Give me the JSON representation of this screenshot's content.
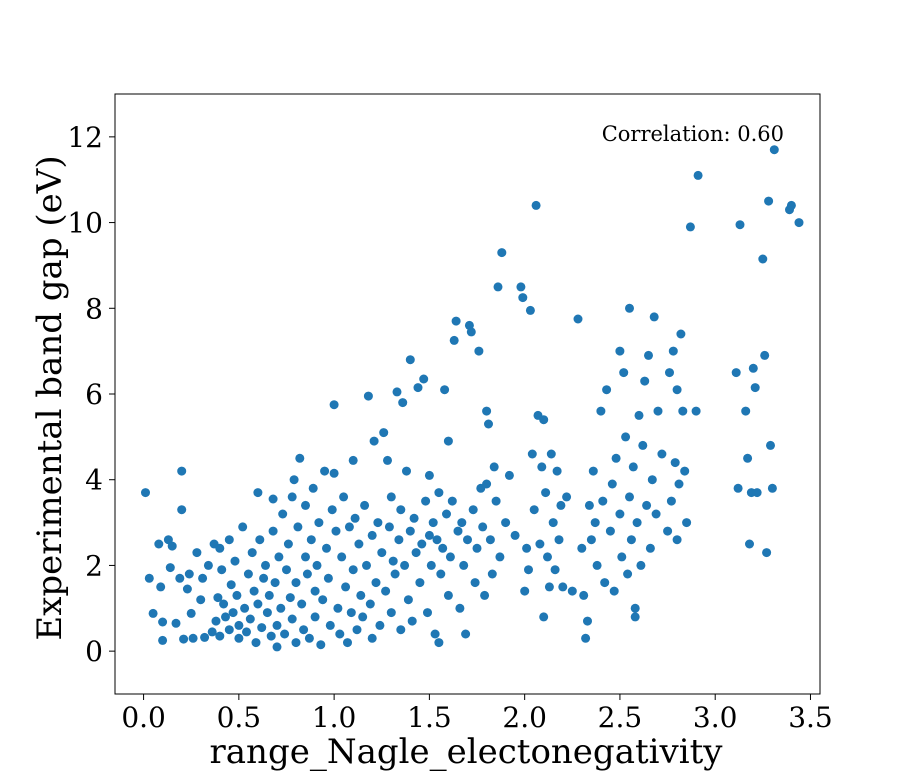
{
  "chart_data": {
    "type": "scatter",
    "title": "",
    "xlabel": "range_Nagle_electonegativity",
    "ylabel": "Experimental band gap (eV)",
    "xlim": [
      -0.15,
      3.55
    ],
    "ylim": [
      -1.0,
      13.0
    ],
    "xticks": [
      0.0,
      0.5,
      1.0,
      1.5,
      2.0,
      2.5,
      3.0,
      3.5
    ],
    "xtick_labels": [
      "0.0",
      "0.5",
      "1.0",
      "1.5",
      "2.0",
      "2.5",
      "3.0",
      "3.5"
    ],
    "yticks": [
      0,
      2,
      4,
      6,
      8,
      10,
      12
    ],
    "ytick_labels": [
      "0",
      "2",
      "4",
      "6",
      "8",
      "10",
      "12"
    ],
    "annotation": "Correlation: 0.60",
    "grid": false,
    "marker_color": "#1f77b4",
    "points": [
      [
        0.01,
        3.7
      ],
      [
        0.03,
        1.7
      ],
      [
        0.05,
        0.88
      ],
      [
        0.08,
        2.5
      ],
      [
        0.09,
        1.5
      ],
      [
        0.1,
        0.68
      ],
      [
        0.1,
        0.25
      ],
      [
        0.13,
        2.6
      ],
      [
        0.14,
        1.95
      ],
      [
        0.15,
        2.45
      ],
      [
        0.17,
        0.65
      ],
      [
        0.19,
        1.7
      ],
      [
        0.2,
        3.3
      ],
      [
        0.2,
        4.2
      ],
      [
        0.21,
        0.28
      ],
      [
        0.23,
        1.45
      ],
      [
        0.24,
        1.8
      ],
      [
        0.25,
        0.88
      ],
      [
        0.26,
        0.3
      ],
      [
        0.28,
        2.3
      ],
      [
        0.3,
        1.2
      ],
      [
        0.31,
        1.7
      ],
      [
        0.32,
        0.32
      ],
      [
        0.34,
        2.0
      ],
      [
        0.36,
        0.45
      ],
      [
        0.37,
        2.5
      ],
      [
        0.38,
        0.7
      ],
      [
        0.39,
        1.25
      ],
      [
        0.4,
        2.4
      ],
      [
        0.4,
        0.35
      ],
      [
        0.41,
        1.9
      ],
      [
        0.42,
        1.1
      ],
      [
        0.43,
        0.8
      ],
      [
        0.45,
        2.6
      ],
      [
        0.45,
        0.5
      ],
      [
        0.46,
        1.55
      ],
      [
        0.47,
        0.9
      ],
      [
        0.48,
        2.1
      ],
      [
        0.49,
        1.3
      ],
      [
        0.5,
        0.3
      ],
      [
        0.5,
        0.6
      ],
      [
        0.52,
        2.9
      ],
      [
        0.53,
        1.0
      ],
      [
        0.54,
        0.45
      ],
      [
        0.55,
        1.8
      ],
      [
        0.56,
        0.75
      ],
      [
        0.57,
        2.3
      ],
      [
        0.58,
        1.4
      ],
      [
        0.59,
        0.2
      ],
      [
        0.6,
        1.1
      ],
      [
        0.6,
        3.7
      ],
      [
        0.61,
        2.6
      ],
      [
        0.62,
        0.55
      ],
      [
        0.63,
        1.7
      ],
      [
        0.64,
        2.0
      ],
      [
        0.65,
        0.9
      ],
      [
        0.66,
        1.3
      ],
      [
        0.67,
        0.35
      ],
      [
        0.68,
        2.8
      ],
      [
        0.68,
        3.55
      ],
      [
        0.69,
        1.6
      ],
      [
        0.7,
        0.1
      ],
      [
        0.7,
        0.6
      ],
      [
        0.71,
        2.2
      ],
      [
        0.72,
        1.0
      ],
      [
        0.73,
        3.2
      ],
      [
        0.74,
        0.4
      ],
      [
        0.75,
        1.9
      ],
      [
        0.76,
        2.5
      ],
      [
        0.77,
        1.25
      ],
      [
        0.78,
        0.75
      ],
      [
        0.78,
        3.6
      ],
      [
        0.79,
        4.0
      ],
      [
        0.8,
        1.6
      ],
      [
        0.8,
        0.2
      ],
      [
        0.81,
        2.9
      ],
      [
        0.82,
        4.5
      ],
      [
        0.83,
        1.1
      ],
      [
        0.84,
        0.5
      ],
      [
        0.85,
        2.2
      ],
      [
        0.85,
        3.4
      ],
      [
        0.86,
        1.8
      ],
      [
        0.87,
        0.3
      ],
      [
        0.88,
        2.6
      ],
      [
        0.89,
        3.8
      ],
      [
        0.9,
        1.4
      ],
      [
        0.9,
        0.8
      ],
      [
        0.91,
        2.0
      ],
      [
        0.92,
        3.0
      ],
      [
        0.93,
        0.15
      ],
      [
        0.94,
        1.2
      ],
      [
        0.95,
        4.2
      ],
      [
        0.96,
        2.4
      ],
      [
        0.97,
        1.7
      ],
      [
        0.98,
        0.6
      ],
      [
        0.99,
        3.3
      ],
      [
        1.0,
        4.15
      ],
      [
        1.0,
        5.75
      ],
      [
        1.01,
        2.8
      ],
      [
        1.02,
        1.0
      ],
      [
        1.03,
        0.4
      ],
      [
        1.04,
        2.2
      ],
      [
        1.05,
        3.6
      ],
      [
        1.06,
        1.5
      ],
      [
        1.07,
        0.2
      ],
      [
        1.08,
        2.9
      ],
      [
        1.09,
        0.9
      ],
      [
        1.1,
        1.9
      ],
      [
        1.1,
        4.45
      ],
      [
        1.11,
        3.1
      ],
      [
        1.12,
        0.5
      ],
      [
        1.13,
        2.5
      ],
      [
        1.14,
        1.3
      ],
      [
        1.15,
        0.8
      ],
      [
        1.16,
        3.4
      ],
      [
        1.17,
        2.0
      ],
      [
        1.18,
        5.95
      ],
      [
        1.19,
        1.1
      ],
      [
        1.2,
        2.7
      ],
      [
        1.2,
        0.3
      ],
      [
        1.21,
        4.9
      ],
      [
        1.22,
        1.6
      ],
      [
        1.23,
        3.0
      ],
      [
        1.24,
        0.6
      ],
      [
        1.25,
        2.3
      ],
      [
        1.26,
        5.1
      ],
      [
        1.27,
        1.4
      ],
      [
        1.28,
        4.45
      ],
      [
        1.29,
        2.9
      ],
      [
        1.3,
        0.9
      ],
      [
        1.3,
        3.6
      ],
      [
        1.31,
        2.1
      ],
      [
        1.32,
        1.8
      ],
      [
        1.33,
        6.05
      ],
      [
        1.34,
        2.6
      ],
      [
        1.35,
        3.3
      ],
      [
        1.35,
        0.5
      ],
      [
        1.36,
        5.8
      ],
      [
        1.37,
        2.0
      ],
      [
        1.38,
        4.2
      ],
      [
        1.39,
        1.2
      ],
      [
        1.4,
        2.8
      ],
      [
        1.4,
        6.8
      ],
      [
        1.41,
        0.7
      ],
      [
        1.42,
        3.1
      ],
      [
        1.43,
        2.3
      ],
      [
        1.44,
        6.15
      ],
      [
        1.45,
        1.6
      ],
      [
        1.46,
        2.5
      ],
      [
        1.47,
        6.35
      ],
      [
        1.48,
        3.5
      ],
      [
        1.49,
        0.9
      ],
      [
        1.5,
        2.7
      ],
      [
        1.5,
        4.1
      ],
      [
        1.51,
        2.0
      ],
      [
        1.52,
        3.0
      ],
      [
        1.53,
        0.4
      ],
      [
        1.54,
        2.6
      ],
      [
        1.55,
        3.7
      ],
      [
        1.55,
        0.2
      ],
      [
        1.56,
        1.8
      ],
      [
        1.57,
        2.4
      ],
      [
        1.58,
        6.1
      ],
      [
        1.59,
        3.2
      ],
      [
        1.6,
        4.9
      ],
      [
        1.6,
        1.3
      ],
      [
        1.61,
        2.2
      ],
      [
        1.62,
        3.5
      ],
      [
        1.63,
        7.25
      ],
      [
        1.64,
        7.7
      ],
      [
        1.65,
        2.8
      ],
      [
        1.66,
        1.0
      ],
      [
        1.67,
        3.0
      ],
      [
        1.68,
        2.0
      ],
      [
        1.69,
        0.4
      ],
      [
        1.7,
        2.6
      ],
      [
        1.71,
        7.6
      ],
      [
        1.72,
        7.45
      ],
      [
        1.73,
        3.3
      ],
      [
        1.74,
        1.6
      ],
      [
        1.75,
        2.4
      ],
      [
        1.76,
        7.0
      ],
      [
        1.77,
        3.8
      ],
      [
        1.78,
        2.9
      ],
      [
        1.79,
        1.3
      ],
      [
        1.8,
        5.6
      ],
      [
        1.8,
        3.9
      ],
      [
        1.81,
        5.3
      ],
      [
        1.82,
        2.6
      ],
      [
        1.83,
        1.8
      ],
      [
        1.84,
        4.3
      ],
      [
        1.85,
        3.5
      ],
      [
        1.86,
        8.5
      ],
      [
        1.87,
        2.2
      ],
      [
        1.88,
        9.3
      ],
      [
        1.9,
        3.0
      ],
      [
        1.92,
        4.1
      ],
      [
        1.95,
        2.7
      ],
      [
        1.98,
        8.5
      ],
      [
        1.99,
        8.25
      ],
      [
        2.0,
        1.4
      ],
      [
        2.01,
        2.4
      ],
      [
        2.02,
        1.9
      ],
      [
        2.03,
        7.95
      ],
      [
        2.04,
        4.6
      ],
      [
        2.05,
        3.3
      ],
      [
        2.06,
        10.4
      ],
      [
        2.07,
        5.5
      ],
      [
        2.08,
        2.5
      ],
      [
        2.09,
        4.3
      ],
      [
        2.1,
        0.8
      ],
      [
        2.1,
        5.4
      ],
      [
        2.11,
        3.7
      ],
      [
        2.12,
        2.2
      ],
      [
        2.13,
        1.5
      ],
      [
        2.14,
        4.6
      ],
      [
        2.15,
        3.0
      ],
      [
        2.16,
        1.9
      ],
      [
        2.17,
        4.2
      ],
      [
        2.18,
        2.6
      ],
      [
        2.19,
        3.4
      ],
      [
        2.2,
        1.5
      ],
      [
        2.22,
        3.6
      ],
      [
        2.25,
        1.4
      ],
      [
        2.28,
        7.75
      ],
      [
        2.3,
        2.4
      ],
      [
        2.31,
        1.3
      ],
      [
        2.32,
        0.3
      ],
      [
        2.33,
        0.7
      ],
      [
        2.34,
        3.4
      ],
      [
        2.35,
        2.6
      ],
      [
        2.36,
        4.2
      ],
      [
        2.37,
        3.0
      ],
      [
        2.38,
        2.0
      ],
      [
        2.4,
        5.6
      ],
      [
        2.41,
        3.5
      ],
      [
        2.42,
        1.6
      ],
      [
        2.43,
        6.1
      ],
      [
        2.45,
        2.8
      ],
      [
        2.46,
        3.9
      ],
      [
        2.47,
        1.4
      ],
      [
        2.48,
        4.5
      ],
      [
        2.5,
        3.2
      ],
      [
        2.5,
        7.0
      ],
      [
        2.51,
        2.2
      ],
      [
        2.52,
        6.5
      ],
      [
        2.53,
        5.0
      ],
      [
        2.54,
        1.8
      ],
      [
        2.55,
        3.6
      ],
      [
        2.55,
        8.0
      ],
      [
        2.56,
        2.6
      ],
      [
        2.57,
        4.3
      ],
      [
        2.58,
        0.8
      ],
      [
        2.58,
        1.0
      ],
      [
        2.59,
        3.0
      ],
      [
        2.6,
        5.5
      ],
      [
        2.61,
        2.0
      ],
      [
        2.62,
        4.8
      ],
      [
        2.63,
        6.3
      ],
      [
        2.64,
        3.4
      ],
      [
        2.65,
        6.9
      ],
      [
        2.66,
        2.4
      ],
      [
        2.67,
        4.0
      ],
      [
        2.68,
        7.8
      ],
      [
        2.69,
        3.2
      ],
      [
        2.7,
        5.6
      ],
      [
        2.72,
        4.6
      ],
      [
        2.75,
        2.8
      ],
      [
        2.76,
        6.5
      ],
      [
        2.77,
        3.5
      ],
      [
        2.78,
        7.0
      ],
      [
        2.79,
        4.4
      ],
      [
        2.8,
        2.6
      ],
      [
        2.8,
        6.1
      ],
      [
        2.81,
        3.9
      ],
      [
        2.82,
        7.4
      ],
      [
        2.83,
        5.6
      ],
      [
        2.84,
        4.2
      ],
      [
        2.85,
        3.0
      ],
      [
        2.87,
        9.9
      ],
      [
        2.9,
        5.6
      ],
      [
        2.91,
        11.1
      ],
      [
        3.11,
        6.5
      ],
      [
        3.12,
        3.8
      ],
      [
        3.13,
        9.95
      ],
      [
        3.16,
        5.6
      ],
      [
        3.17,
        4.5
      ],
      [
        3.18,
        2.5
      ],
      [
        3.19,
        3.7
      ],
      [
        3.2,
        6.6
      ],
      [
        3.21,
        6.15
      ],
      [
        3.22,
        3.7
      ],
      [
        3.25,
        9.15
      ],
      [
        3.26,
        6.9
      ],
      [
        3.27,
        2.3
      ],
      [
        3.28,
        10.5
      ],
      [
        3.29,
        4.8
      ],
      [
        3.3,
        3.8
      ],
      [
        3.31,
        11.7
      ],
      [
        3.39,
        10.3
      ],
      [
        3.4,
        10.4
      ],
      [
        3.44,
        10.0
      ]
    ]
  }
}
